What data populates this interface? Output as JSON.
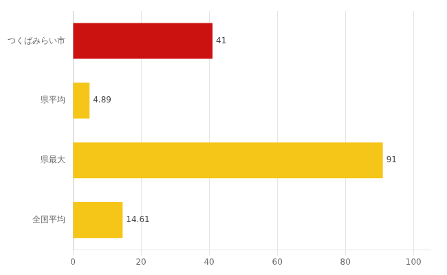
{
  "chart_data": {
    "type": "bar",
    "orientation": "horizontal",
    "categories": [
      "つくばみらい市",
      "県平均",
      "県最大",
      "全国平均"
    ],
    "values": [
      41,
      4.89,
      91,
      14.61
    ],
    "colors": [
      "#cc1111",
      "#f5c518",
      "#f5c518",
      "#f5c518"
    ],
    "xlim": [
      0,
      105
    ],
    "xticks": [
      0,
      20,
      40,
      60,
      80,
      100
    ],
    "grid": true,
    "data_labels": true
  }
}
